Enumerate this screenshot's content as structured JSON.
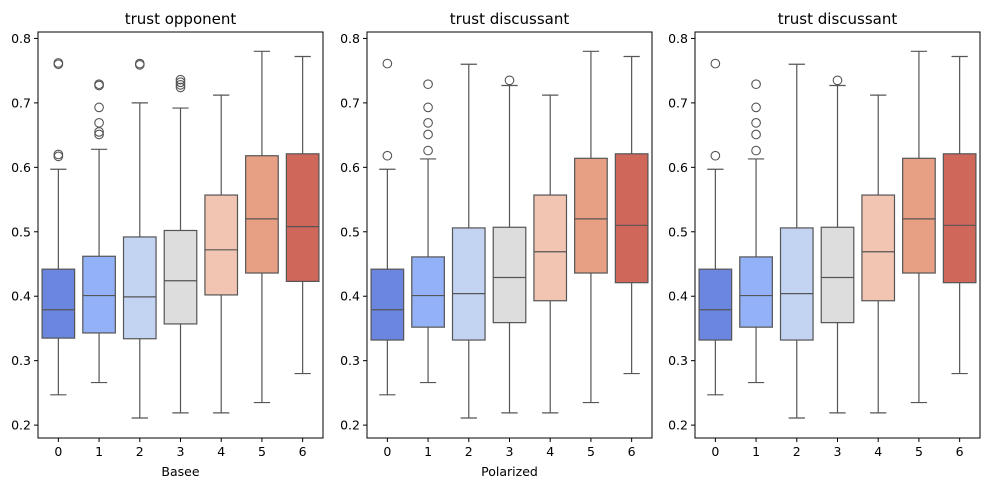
{
  "chart_data": [
    {
      "type": "box",
      "title": "trust opponent",
      "xlabel": "Basee",
      "ylabel": "",
      "ylim": [
        0.18,
        0.81
      ],
      "yticks": [
        0.2,
        0.3,
        0.4,
        0.5,
        0.6,
        0.7,
        0.8
      ],
      "ytick_labels": [
        "0.2",
        "0.3",
        "0.4",
        "0.5",
        "0.6",
        "0.7",
        "0.8"
      ],
      "categories": [
        "0",
        "1",
        "2",
        "3",
        "4",
        "5",
        "6"
      ],
      "colors": [
        "#6b86df",
        "#93b1f6",
        "#c3d4f3",
        "#dddddd",
        "#f2c5b2",
        "#e8a085",
        "#d0675b"
      ],
      "boxes": [
        {
          "category": "0",
          "whislo": 0.247,
          "q1": 0.335,
          "med": 0.379,
          "q3": 0.442,
          "whishi": 0.597,
          "fliers": [
            0.617,
            0.62,
            0.76,
            0.762
          ]
        },
        {
          "category": "1",
          "whislo": 0.266,
          "q1": 0.343,
          "med": 0.401,
          "q3": 0.462,
          "whishi": 0.628,
          "fliers": [
            0.651,
            0.655,
            0.669,
            0.693,
            0.727,
            0.729
          ]
        },
        {
          "category": "2",
          "whislo": 0.211,
          "q1": 0.334,
          "med": 0.399,
          "q3": 0.492,
          "whishi": 0.7,
          "fliers": [
            0.759,
            0.761
          ]
        },
        {
          "category": "3",
          "whislo": 0.219,
          "q1": 0.357,
          "med": 0.424,
          "q3": 0.502,
          "whishi": 0.692,
          "fliers": [
            0.724,
            0.728,
            0.732,
            0.736
          ]
        },
        {
          "category": "4",
          "whislo": 0.219,
          "q1": 0.402,
          "med": 0.472,
          "q3": 0.557,
          "whishi": 0.712,
          "fliers": []
        },
        {
          "category": "5",
          "whislo": 0.235,
          "q1": 0.436,
          "med": 0.52,
          "q3": 0.618,
          "whishi": 0.78,
          "fliers": []
        },
        {
          "category": "6",
          "whislo": 0.28,
          "q1": 0.423,
          "med": 0.508,
          "q3": 0.621,
          "whishi": 0.772,
          "fliers": []
        }
      ]
    },
    {
      "type": "box",
      "title": "trust discussant",
      "xlabel": "Polarized",
      "ylabel": "",
      "ylim": [
        0.18,
        0.81
      ],
      "yticks": [
        0.2,
        0.3,
        0.4,
        0.5,
        0.6,
        0.7,
        0.8
      ],
      "ytick_labels": [
        "0.2",
        "0.3",
        "0.4",
        "0.5",
        "0.6",
        "0.7",
        "0.8"
      ],
      "categories": [
        "0",
        "1",
        "2",
        "3",
        "4",
        "5",
        "6"
      ],
      "colors": [
        "#6b86df",
        "#93b1f6",
        "#c3d4f3",
        "#dddddd",
        "#f2c5b2",
        "#e8a085",
        "#d0675b"
      ],
      "boxes": [
        {
          "category": "0",
          "whislo": 0.247,
          "q1": 0.332,
          "med": 0.379,
          "q3": 0.442,
          "whishi": 0.597,
          "fliers": [
            0.618,
            0.761
          ]
        },
        {
          "category": "1",
          "whislo": 0.266,
          "q1": 0.352,
          "med": 0.401,
          "q3": 0.461,
          "whishi": 0.613,
          "fliers": [
            0.626,
            0.651,
            0.669,
            0.693,
            0.729
          ]
        },
        {
          "category": "2",
          "whislo": 0.211,
          "q1": 0.332,
          "med": 0.404,
          "q3": 0.506,
          "whishi": 0.76,
          "fliers": []
        },
        {
          "category": "3",
          "whislo": 0.219,
          "q1": 0.359,
          "med": 0.429,
          "q3": 0.507,
          "whishi": 0.727,
          "fliers": [
            0.735
          ]
        },
        {
          "category": "4",
          "whislo": 0.219,
          "q1": 0.393,
          "med": 0.469,
          "q3": 0.557,
          "whishi": 0.712,
          "fliers": []
        },
        {
          "category": "5",
          "whislo": 0.235,
          "q1": 0.436,
          "med": 0.52,
          "q3": 0.614,
          "whishi": 0.78,
          "fliers": []
        },
        {
          "category": "6",
          "whislo": 0.28,
          "q1": 0.421,
          "med": 0.51,
          "q3": 0.621,
          "whishi": 0.772,
          "fliers": []
        }
      ]
    },
    {
      "type": "box",
      "title": "trust discussant",
      "xlabel": "",
      "ylabel": "",
      "ylim": [
        0.18,
        0.81
      ],
      "yticks": [
        0.2,
        0.3,
        0.4,
        0.5,
        0.6,
        0.7,
        0.8
      ],
      "ytick_labels": [
        "0.2",
        "0.3",
        "0.4",
        "0.5",
        "0.6",
        "0.7",
        "0.8"
      ],
      "categories": [
        "0",
        "1",
        "2",
        "3",
        "4",
        "5",
        "6"
      ],
      "colors": [
        "#6b86df",
        "#93b1f6",
        "#c3d4f3",
        "#dddddd",
        "#f2c5b2",
        "#e8a085",
        "#d0675b"
      ],
      "boxes": [
        {
          "category": "0",
          "whislo": 0.247,
          "q1": 0.332,
          "med": 0.379,
          "q3": 0.442,
          "whishi": 0.597,
          "fliers": [
            0.618,
            0.761
          ]
        },
        {
          "category": "1",
          "whislo": 0.266,
          "q1": 0.352,
          "med": 0.401,
          "q3": 0.461,
          "whishi": 0.613,
          "fliers": [
            0.626,
            0.651,
            0.669,
            0.693,
            0.729
          ]
        },
        {
          "category": "2",
          "whislo": 0.211,
          "q1": 0.332,
          "med": 0.404,
          "q3": 0.506,
          "whishi": 0.76,
          "fliers": []
        },
        {
          "category": "3",
          "whislo": 0.219,
          "q1": 0.359,
          "med": 0.429,
          "q3": 0.507,
          "whishi": 0.727,
          "fliers": [
            0.735
          ]
        },
        {
          "category": "4",
          "whislo": 0.219,
          "q1": 0.393,
          "med": 0.469,
          "q3": 0.557,
          "whishi": 0.712,
          "fliers": []
        },
        {
          "category": "5",
          "whislo": 0.235,
          "q1": 0.436,
          "med": 0.52,
          "q3": 0.614,
          "whishi": 0.78,
          "fliers": []
        },
        {
          "category": "6",
          "whislo": 0.28,
          "q1": 0.421,
          "med": 0.51,
          "q3": 0.621,
          "whishi": 0.772,
          "fliers": []
        }
      ]
    }
  ]
}
